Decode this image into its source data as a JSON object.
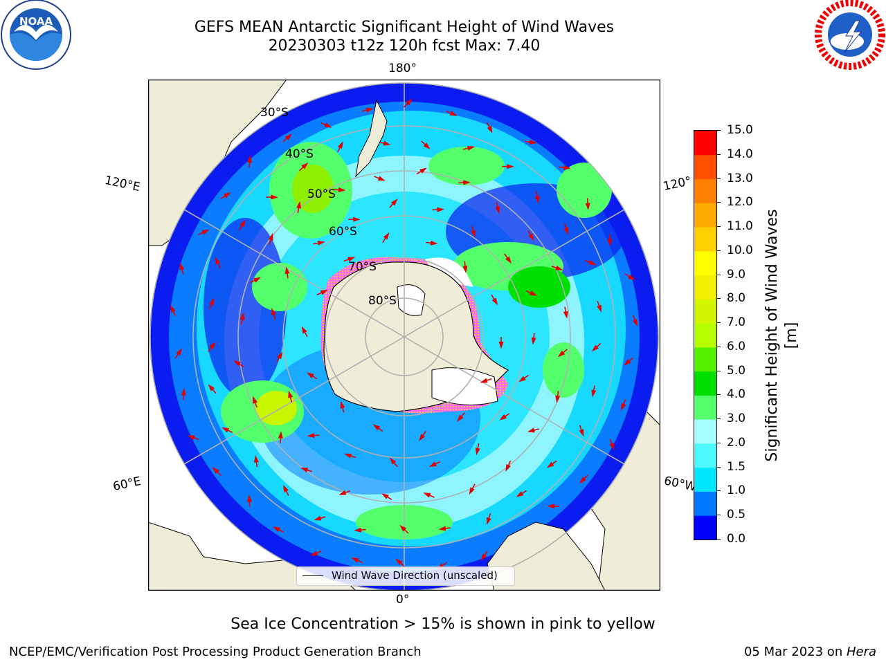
{
  "header": {
    "title_line1": "GEFS MEAN Antarctic Significant Height of Wind Waves",
    "title_line2": "20230303 t12z 120h fcst   Max: 7.40"
  },
  "logos": {
    "left": "NOAA",
    "right": "NATIONAL WEATHER SERVICE"
  },
  "map": {
    "projection": "south-polar-stereographic",
    "longitude_labels": [
      "180°",
      "120°E",
      "120°",
      "60°E",
      "60°W",
      "0°"
    ],
    "latitude_labels": [
      "30°S",
      "40°S",
      "50°S",
      "60°S",
      "70°S",
      "80°S"
    ],
    "land_color": "#efecd8",
    "ice_note_color": "#ff33ff",
    "arrow_color": "#e00000"
  },
  "legend": {
    "label": "Wind Wave Direction (unscaled)"
  },
  "colorbar": {
    "label": "Significant Height of Wind Waves [m]",
    "ticks": [
      "0.0",
      "0.5",
      "1.0",
      "1.5",
      "2.0",
      "3.0",
      "4.0",
      "5.0",
      "6.0",
      "7.0",
      "8.0",
      "9.0",
      "10.0",
      "11.0",
      "12.0",
      "13.0",
      "14.0",
      "15.0"
    ],
    "colors": [
      "#0000ff",
      "#0078ff",
      "#00e6ff",
      "#4df9ff",
      "#a6ffff",
      "#54ff6c",
      "#00e000",
      "#55f000",
      "#b7ff00",
      "#d4f500",
      "#f0f000",
      "#ffff00",
      "#ffd000",
      "#ffaa00",
      "#ff8000",
      "#ff5000",
      "#ff0000"
    ]
  },
  "footer": {
    "subtitle": "Sea Ice Concentration > 15% is shown in pink to yellow",
    "credit": "NCEP/EMC/Verification Post Processing Product Generation Branch",
    "date": "05 Mar 2023 on ",
    "machine": "Hera"
  }
}
